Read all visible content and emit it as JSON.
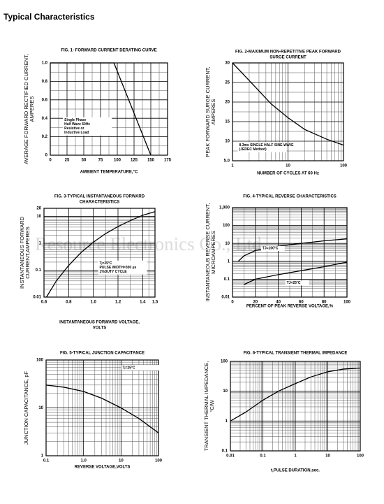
{
  "page_title": "Typical Characteristics",
  "watermark": "Resource Electronics Co., Ltd",
  "chart_data": [
    {
      "type": "line",
      "title": [
        "FIG. 1- FORWARD CURRENT DERATING CURVE"
      ],
      "ylabel": [
        "AVERAGE FORWARD RECTIFIED CURRENT,",
        "AMPERES"
      ],
      "xlabel": [
        "AMBIENT TEMPERATURE,°C"
      ],
      "xscale": "linear",
      "yscale": "linear",
      "xlim": [
        0,
        175
      ],
      "ylim": [
        0,
        1.0
      ],
      "xticks": [
        0,
        25,
        50,
        75,
        100,
        125,
        150,
        175
      ],
      "yticks": [
        0,
        0.2,
        0.4,
        0.6,
        0.8,
        {
          "value": 1.0,
          "label": "1.0"
        }
      ],
      "grid": true,
      "minor_grid": true,
      "annotation": [
        "Single Phase",
        "Half Wave 60Hz",
        "Resistive or",
        "Inductive Load"
      ],
      "series": [
        {
          "color": "#000000",
          "x": [
            0,
            95,
            150
          ],
          "values": [
            1.0,
            1.0,
            0
          ]
        }
      ]
    },
    {
      "type": "line",
      "title": [
        "FIG. 2-MAXIMUM NON-REPETITIVE PEAK FORWARD",
        "SURGE CURRENT"
      ],
      "ylabel": [
        "PEAK FORWARD SURGE CURRENT,",
        "AMPERES"
      ],
      "xlabel": [
        "NUMBER OF CYCLES AT 60 Hz"
      ],
      "xscale": "log",
      "yscale": "linear",
      "xlim": [
        1,
        100
      ],
      "ylim": [
        5,
        30
      ],
      "xticks": [
        1,
        10,
        100
      ],
      "yticks": [
        {
          "value": 5,
          "label": "5.0"
        },
        10,
        15,
        20,
        25,
        30
      ],
      "grid": true,
      "minor_grid": true,
      "annotation": [
        "8.3ms SINGLE HALF SINE-WAVE",
        "(JEDEC Method)"
      ],
      "series": [
        {
          "color": "#000000",
          "x": [
            1,
            2,
            5,
            10,
            20,
            50,
            100
          ],
          "values": [
            30,
            25.5,
            19.5,
            16,
            13,
            10.5,
            9
          ]
        }
      ]
    },
    {
      "type": "line",
      "title": [
        "FIG. 3-TYPICAL INSTANTANEOUS FORWARD",
        "CHARACTERISTICS"
      ],
      "ylabel": [
        "INSTANTANEOUS FORWARD",
        "CURRENT,AMPERES"
      ],
      "xlabel": [
        "INSTANTANEOUS FORWARD VOLTAGE,",
        "VOLTS"
      ],
      "xscale": "linear",
      "yscale": "log",
      "xlim": [
        0.6,
        1.5
      ],
      "ylim": [
        0.01,
        20
      ],
      "xticks": [
        0.6,
        0.8,
        {
          "value": 1.0,
          "label": "1.0"
        },
        1.2,
        1.4,
        1.5
      ],
      "yticks": [
        0.01,
        0.1,
        1,
        10,
        20
      ],
      "grid": true,
      "minor_grid": true,
      "annotation": [
        "Tⱼ=25°C",
        "PULSE WIDTH=300 µs",
        "1%DUTY CYCLE"
      ],
      "series": [
        {
          "color": "#000000",
          "x": [
            0.62,
            0.7,
            0.8,
            0.9,
            1.0,
            1.1,
            1.2,
            1.3,
            1.4,
            1.5
          ],
          "values": [
            0.01,
            0.04,
            0.15,
            0.45,
            1.1,
            2.3,
            4.2,
            7,
            11,
            15
          ]
        }
      ]
    },
    {
      "type": "line",
      "title": [
        "FIG. 4-TYPICAL REVERSE CHARACTERISTICS"
      ],
      "ylabel": [
        "INSTANTANEOUS REVERSE CURRENT,",
        "MICROAMPERES"
      ],
      "xlabel": [
        "PERCENT OF PEAK REVERSE VOLTAGE,%"
      ],
      "xscale": "linear",
      "yscale": "log",
      "xlim": [
        0,
        100
      ],
      "ylim": [
        0.01,
        1000
      ],
      "xticks": [
        0,
        20,
        40,
        60,
        80,
        100
      ],
      "yticks": [
        0.01,
        0.1,
        1,
        10,
        100,
        {
          "value": 1000,
          "label": "1,000"
        }
      ],
      "grid": true,
      "minor_grid": true,
      "series": [
        {
          "name": "TJ=100°C",
          "color": "#000000",
          "x": [
            5,
            10,
            20,
            40,
            60,
            80,
            100
          ],
          "values": [
            1,
            2,
            4,
            7,
            10,
            14,
            18
          ]
        },
        {
          "name": "TJ=25°C",
          "color": "#000000",
          "x": [
            10,
            20,
            40,
            60,
            80,
            100
          ],
          "values": [
            0.05,
            0.1,
            0.18,
            0.3,
            0.5,
            0.9
          ]
        }
      ]
    },
    {
      "type": "line",
      "title": [
        "FIG. 5-TYPICAL JUNCTION CAPACITANCE"
      ],
      "ylabel": [
        "JUNCTION CAPACITANCE, pF"
      ],
      "xlabel": [
        "REVERSE VOLTAGE,VOLTS"
      ],
      "xscale": "log",
      "yscale": "log",
      "xlim": [
        0.1,
        100
      ],
      "ylim": [
        1,
        100
      ],
      "xticks": [
        0.1,
        {
          "value": 1,
          "label": "1.0"
        },
        10,
        100
      ],
      "yticks": [
        1,
        10,
        100
      ],
      "grid": true,
      "minor_grid": true,
      "annotation": [
        "Tⱼ=25°C"
      ],
      "series": [
        {
          "color": "#000000",
          "x": [
            0.1,
            0.3,
            1,
            3,
            10,
            30,
            100
          ],
          "values": [
            30,
            27,
            22,
            16,
            10,
            6,
            3
          ]
        }
      ]
    },
    {
      "type": "line",
      "title": [
        "FIG. 6-TYPICAL TRANSIENT THERMAL IMPEDANCE"
      ],
      "ylabel": [
        "TRANSIENT THERMAL IMPEDANCE,",
        "°C/W"
      ],
      "xlabel": [
        "t,PULSE DURATION,sec."
      ],
      "xscale": "log",
      "yscale": "log",
      "xlim": [
        0.01,
        100
      ],
      "ylim": [
        0.1,
        100
      ],
      "xticks": [
        0.01,
        0.1,
        1,
        10,
        100
      ],
      "yticks": [
        0.1,
        1,
        10,
        100
      ],
      "grid": true,
      "minor_grid": true,
      "series": [
        {
          "color": "#000000",
          "x": [
            0.01,
            0.03,
            0.1,
            0.3,
            1,
            3,
            10,
            30,
            100
          ],
          "values": [
            1,
            2,
            5,
            10,
            18,
            30,
            45,
            55,
            60
          ]
        }
      ]
    }
  ]
}
